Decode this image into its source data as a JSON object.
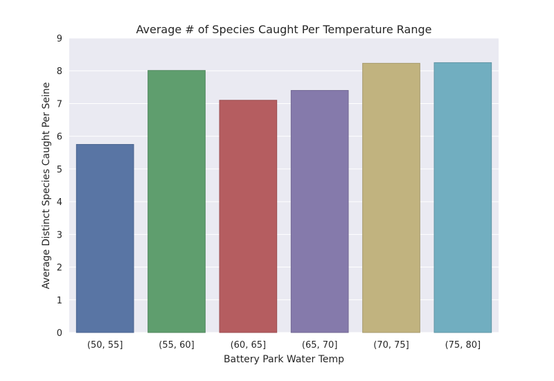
{
  "chart_data": {
    "type": "bar",
    "title": "Average # of Species Caught Per Temperature Range",
    "xlabel": "Battery Park Water Temp",
    "ylabel": "Average Distinct Species Caught Per Seine",
    "categories": [
      "(50, 55]",
      "(55, 60]",
      "(60, 65]",
      "(65, 70]",
      "(70, 75]",
      "(75, 80]"
    ],
    "values": [
      5.75,
      8.01,
      7.1,
      7.4,
      8.23,
      8.25
    ],
    "ylim": [
      0,
      9
    ],
    "yticks": [
      0,
      1,
      2,
      3,
      4,
      5,
      6,
      7,
      8,
      9
    ],
    "grid": true,
    "colors": {
      "background": "#eaeaf2",
      "grid": "#ffffff",
      "bars": [
        "#5975a4",
        "#5f9e6e",
        "#b55d60",
        "#857aab",
        "#c1b37f",
        "#71aec0"
      ],
      "bar_edge": [
        "#4c6590",
        "#50875d",
        "#9c4f52",
        "#726893",
        "#a69a6d",
        "#6195a5"
      ]
    }
  }
}
